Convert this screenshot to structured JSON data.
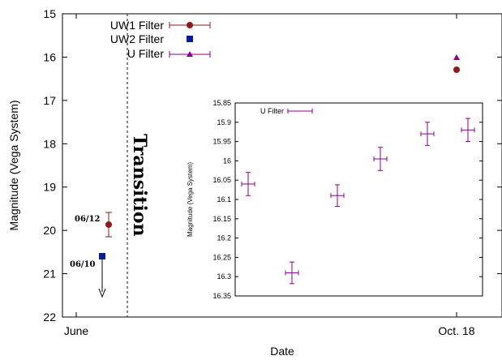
{
  "chart_data": [
    {
      "type": "scatter",
      "title": "",
      "xlabel": "Date",
      "ylabel": "Magnitude (Vega System)",
      "x_ticks": [
        "June",
        "Oct. 18"
      ],
      "y_ticks": [
        "15",
        "16",
        "17",
        "18",
        "19",
        "20",
        "21",
        "22"
      ],
      "ylim": [
        22,
        15
      ],
      "y_inverted": true,
      "grid": false,
      "legend_position": "top-left",
      "series": [
        {
          "name": "UW1 Filter",
          "color": "#8b1a1a",
          "marker": "circle",
          "points": [
            {
              "x": "06/12",
              "y": 19.87,
              "yerr": 0.27
            },
            {
              "x": "Oct. 18",
              "y": 16.33,
              "yerr": 0.0
            }
          ]
        },
        {
          "name": "UW2 Filter",
          "color": "#0a1f8f",
          "marker": "square",
          "points": [
            {
              "x": "06/10",
              "y": 20.6,
              "upper_limit": true
            }
          ]
        },
        {
          "name": "U Filter",
          "color": "#8b008b",
          "marker": "triangle",
          "points": [
            {
              "x": "Oct. 18",
              "y": 16.03
            }
          ]
        }
      ],
      "annotations": [
        "06/12",
        "06/10",
        "Transition"
      ]
    },
    {
      "type": "scatter",
      "title": "",
      "xlabel": "",
      "ylabel": "Magnitude (Vega System)",
      "y_ticks": [
        "15.85",
        "15.9",
        "15.95",
        "16",
        "16.05",
        "16.1",
        "16.15",
        "16.2",
        "16.25",
        "16.3",
        "16.35"
      ],
      "ylim": [
        16.35,
        15.85
      ],
      "y_inverted": true,
      "legend_position": "top-left",
      "series": [
        {
          "name": "U Filter",
          "color": "#8b008b",
          "values": [
            16.06,
            16.29,
            16.09,
            15.995,
            15.93,
            15.92
          ],
          "yerr": [
            0.03,
            0.028,
            0.028,
            0.03,
            0.03,
            0.03
          ]
        }
      ]
    }
  ]
}
